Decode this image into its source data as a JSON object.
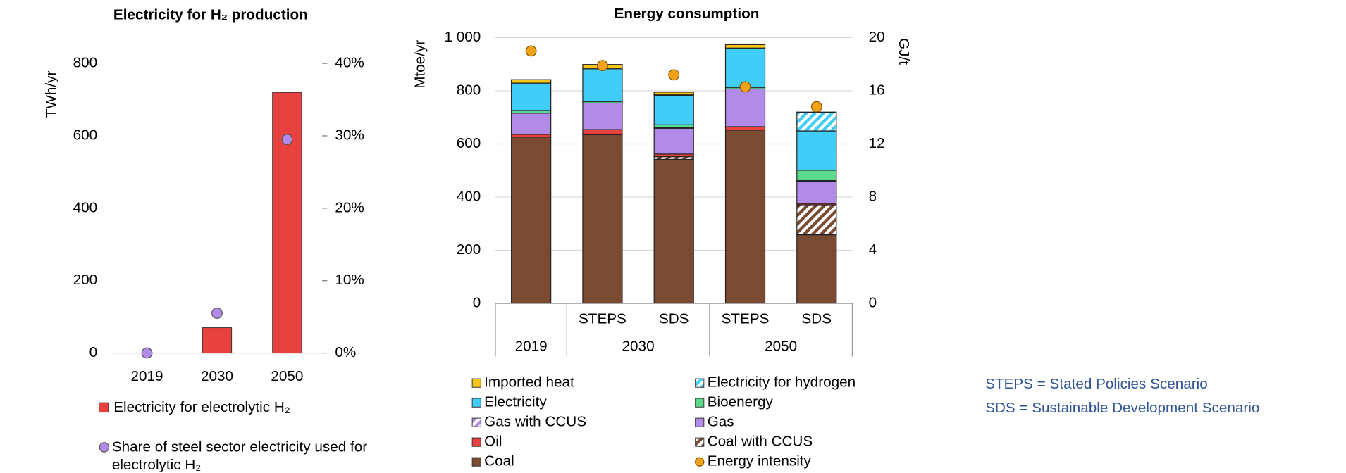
{
  "chart_data": [
    {
      "type": "bar",
      "title": "Electricity for H₂ production",
      "y_label": "TWh/yr",
      "categories": [
        "2019",
        "2030",
        "2050"
      ],
      "series": [
        {
          "name": "Electricity for electrolytic H₂",
          "color": "#e8423f",
          "values": [
            0,
            70,
            720
          ]
        },
        {
          "name": "Share of steel sector electricity used for electrolytic H₂",
          "color": "#b28ae8",
          "type": "scatter",
          "axis": "y2",
          "values": [
            0,
            5.5,
            29.5
          ]
        }
      ],
      "ylim": [
        0,
        800
      ],
      "yticks": [
        0,
        200,
        400,
        600,
        800
      ],
      "y2lim": [
        0,
        40
      ],
      "y2ticks": [
        {
          "value": 0,
          "label": "0%"
        },
        {
          "value": 10,
          "label": "10%"
        },
        {
          "value": 20,
          "label": "20%"
        },
        {
          "value": 30,
          "label": "30%"
        },
        {
          "value": 40,
          "label": "40%"
        }
      ],
      "grid": false
    },
    {
      "type": "stacked_bar",
      "title": "Energy consumption",
      "y_label": "Mtoe/yr",
      "y2_label": "GJ/t",
      "categories": [
        null,
        "STEPS",
        "SDS",
        "STEPS",
        "SDS"
      ],
      "category_groups": [
        "2019",
        "2030",
        "2030",
        "2050",
        "2050"
      ],
      "series": [
        {
          "name": "Coal",
          "color": "#7b4a32",
          "values": [
            626,
            635,
            542,
            652,
            258
          ]
        },
        {
          "name": "Coal with CCUS",
          "color": "#7b4a32",
          "hatch": true,
          "values": [
            0,
            0,
            10,
            0,
            113
          ]
        },
        {
          "name": "Oil",
          "color": "#e8423f",
          "values": [
            10,
            19,
            10,
            13,
            5
          ]
        },
        {
          "name": "Gas",
          "color": "#b28ae8",
          "values": [
            80,
            100,
            97,
            142,
            84
          ]
        },
        {
          "name": "Gas with CCUS",
          "color": "#b28ae8",
          "hatch": true,
          "values": [
            0,
            0,
            3,
            0,
            2
          ]
        },
        {
          "name": "Bioenergy",
          "color": "#5cdb8f",
          "values": [
            10,
            6,
            10,
            6,
            39
          ]
        },
        {
          "name": "Electricity",
          "color": "#40cdf7",
          "values": [
            103,
            123,
            110,
            148,
            148
          ]
        },
        {
          "name": "Electricity for hydrogen",
          "color": "#40cdf7",
          "hatch": true,
          "values": [
            0,
            0,
            3,
            0,
            68
          ]
        },
        {
          "name": "Imported heat",
          "color": "#f5c518",
          "values": [
            13,
            16,
            10,
            13,
            3
          ]
        },
        {
          "name": "Energy intensity",
          "color": "#f0a31a",
          "type": "scatter",
          "axis": "y2",
          "values": [
            19.0,
            17.9,
            17.2,
            16.3,
            14.8
          ]
        }
      ],
      "ylim": [
        0,
        1000
      ],
      "yticks": [
        0,
        200,
        400,
        600,
        800,
        {
          "value": 1000,
          "label": "1 000"
        }
      ],
      "y2lim": [
        0,
        20
      ],
      "y2ticks": [
        0,
        4,
        8,
        12,
        16,
        20
      ],
      "grid": true
    }
  ],
  "notes": [
    "STEPS = Stated Policies Scenario",
    "SDS = Sustainable Development Scenario"
  ]
}
